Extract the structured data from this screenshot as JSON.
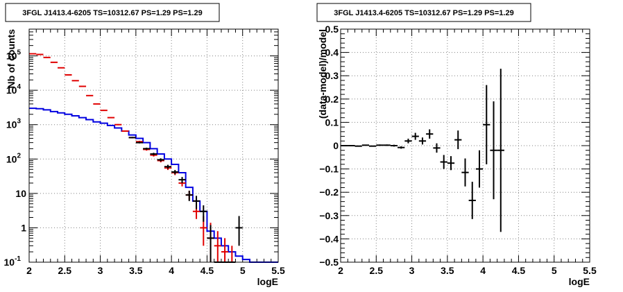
{
  "colors": {
    "data": "#000000",
    "model_sum": "#e00000",
    "component": "#0000e0",
    "grid": "#808080"
  },
  "chart_data": [
    {
      "type": "line",
      "title": "3FGL J1413.4-6205 TS=10312.67 PS=1.29 PS=1.29",
      "xlabel": "logE",
      "ylabel": "Nb of counts",
      "xlim": [
        2,
        5.5
      ],
      "ylim": [
        0.1,
        600000
      ],
      "yscale": "log",
      "grid": true,
      "x_ticks": [
        "2",
        "2.5",
        "3",
        "3.5",
        "4",
        "4.5",
        "5",
        "5.5"
      ],
      "y_ticks": [
        {
          "v": 0.1,
          "label": "10",
          "exp": "-1"
        },
        {
          "v": 1,
          "label": "1",
          "exp": ""
        },
        {
          "v": 10,
          "label": "10",
          "exp": ""
        },
        {
          "v": 100,
          "label": "10",
          "exp": "2"
        },
        {
          "v": 1000,
          "label": "10",
          "exp": "3"
        },
        {
          "v": 10000,
          "label": "10",
          "exp": "4"
        },
        {
          "v": 100000,
          "label": "10",
          "exp": "5"
        }
      ],
      "bin_edges": [
        2.0,
        2.1,
        2.2,
        2.3,
        2.4,
        2.5,
        2.6,
        2.7,
        2.8,
        2.9,
        3.0,
        3.1,
        3.2,
        3.3,
        3.4,
        3.5,
        3.6,
        3.7,
        3.8,
        3.9,
        4.0,
        4.1,
        4.2,
        4.3,
        4.4,
        4.5,
        4.6,
        4.7,
        4.8,
        4.9,
        5.0,
        5.1,
        5.2,
        5.3,
        5.4,
        5.5
      ],
      "series": [
        {
          "style": "histogram",
          "color_key": "component",
          "values": [
            3000,
            2900,
            2700,
            2400,
            2200,
            2000,
            1800,
            1600,
            1400,
            1200,
            1100,
            950,
            800,
            650,
            500,
            400,
            300,
            200,
            140,
            100,
            70,
            40,
            15,
            6,
            3,
            0.8,
            0.5,
            0.3,
            0.2,
            0.15,
            0.12,
            0.1,
            0.1,
            0.1,
            0.1
          ]
        },
        {
          "style": "markers",
          "color_key": "model_sum",
          "x": [
            2.05,
            2.15,
            2.25,
            2.35,
            2.45,
            2.55,
            2.65,
            2.75,
            2.85,
            2.95,
            3.05,
            3.15,
            3.25,
            3.35,
            3.45,
            3.55,
            3.65,
            3.75,
            3.85,
            3.95,
            4.05,
            4.15,
            4.25,
            4.35,
            4.45,
            4.55,
            4.65,
            4.75,
            4.85
          ],
          "y": [
            115000,
            110000,
            90000,
            65000,
            45000,
            28000,
            19000,
            13000,
            7000,
            4000,
            2600,
            1600,
            1000,
            650,
            420,
            320,
            190,
            130,
            90,
            55,
            40,
            20,
            9,
            3,
            1,
            0.5,
            0.3,
            0.2,
            0.1
          ],
          "y_low": [
            112000,
            107000,
            87000,
            63000,
            43500,
            27000,
            18500,
            12500,
            6800,
            3900,
            2500,
            1550,
            960,
            620,
            400,
            300,
            175,
            118,
            80,
            48,
            34,
            16,
            6.5,
            1.8,
            0.3,
            0.05,
            0.05,
            0.05,
            0.05
          ],
          "y_high": [
            118000,
            113000,
            93000,
            67000,
            46500,
            29000,
            19500,
            13500,
            7200,
            4100,
            2700,
            1650,
            1040,
            680,
            440,
            340,
            205,
            142,
            100,
            62,
            46,
            24,
            12,
            4.5,
            2.2,
            1.4,
            0.8,
            0.5,
            0.3
          ]
        },
        {
          "style": "markers",
          "color_key": "data",
          "x": [
            3.45,
            3.55,
            3.65,
            3.75,
            3.85,
            3.95,
            4.05,
            4.15,
            4.25,
            4.35,
            4.45,
            4.55,
            4.65,
            4.75,
            4.85,
            4.95
          ],
          "y": [
            420,
            300,
            200,
            140,
            95,
            60,
            42,
            25,
            9,
            6,
            3,
            0.5,
            0.1,
            0.1,
            0.1,
            1
          ],
          "y_low": [
            400,
            285,
            186,
            128,
            85,
            52,
            36,
            20,
            6,
            3.5,
            1.5,
            0.1,
            0.1,
            0.1,
            0.1,
            0.3
          ],
          "y_high": [
            440,
            318,
            214,
            152,
            105,
            68,
            48,
            30,
            12,
            8.5,
            4.5,
            1.2,
            0.1,
            0.1,
            0.1,
            2.2
          ]
        }
      ]
    },
    {
      "type": "scatter",
      "title": "3FGL J1413.4-6205 TS=10312.67 PS=1.29 PS=1.29",
      "xlabel": "logE",
      "ylabel": "(data-model)/model",
      "xlim": [
        2,
        5.5
      ],
      "ylim": [
        -0.5,
        0.5
      ],
      "grid": true,
      "x_ticks": [
        "2",
        "2.5",
        "3",
        "3.5",
        "4",
        "4.5",
        "5",
        "5.5"
      ],
      "y_ticks": [
        "−0.5",
        "−0.4",
        "−0.3",
        "−0.2",
        "−0.1",
        "0",
        "0.1",
        "0.2",
        "0.3",
        "0.4",
        "0.5"
      ],
      "series": [
        {
          "color_key": "data",
          "x": [
            2.05,
            2.15,
            2.25,
            2.35,
            2.45,
            2.55,
            2.65,
            2.75,
            2.85,
            2.95,
            3.05,
            3.15,
            3.25,
            3.35,
            3.45,
            3.55,
            3.65,
            3.75,
            3.85,
            3.95,
            4.05,
            4.15,
            4.25
          ],
          "y": [
            0,
            0,
            -0.002,
            0.002,
            -0.002,
            0.002,
            0.002,
            0,
            -0.008,
            0.02,
            0.04,
            0.02,
            0.05,
            -0.01,
            -0.07,
            -0.075,
            0.025,
            -0.115,
            -0.235,
            -0.1,
            0.09,
            -0.02,
            -0.02
          ],
          "y_err": [
            0.002,
            0.002,
            0.002,
            0.002,
            0.002,
            0.003,
            0.003,
            0.004,
            0.005,
            0.01,
            0.015,
            0.015,
            0.02,
            0.02,
            0.03,
            0.03,
            0.04,
            0.06,
            0.08,
            0.08,
            0.17,
            0.21,
            0.35
          ]
        }
      ]
    }
  ]
}
